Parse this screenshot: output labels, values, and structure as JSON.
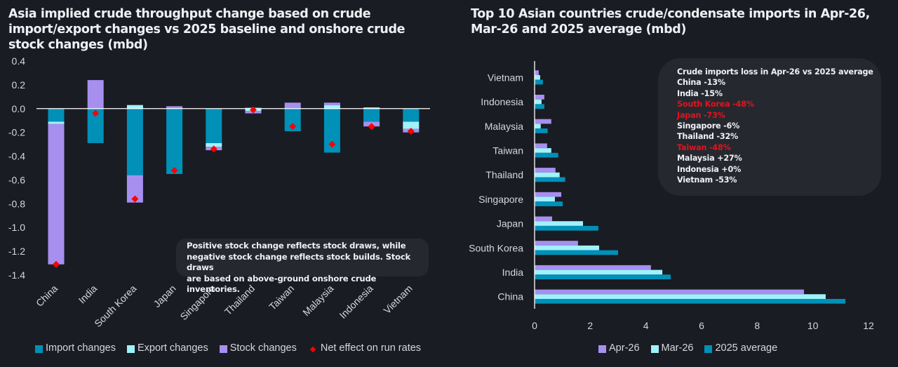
{
  "chart_data": [
    {
      "type": "bar",
      "stacked": true,
      "title": "Asia implied crude throughput change based on crude import/export changes vs 2025 baseline and onshore crude stock changes (mbd)",
      "xlabel": "",
      "ylabel": "",
      "categories": [
        "China",
        "India",
        "South Korea",
        "Japan",
        "Singapore",
        "Thailand",
        "Taiwan",
        "Malaysia",
        "Indonesia",
        "Vietnam"
      ],
      "ylim": [
        -1.4,
        0.4
      ],
      "yticks": [
        "0.4",
        "0.2",
        "0.0",
        "-0.2",
        "-0.4",
        "-0.6",
        "-0.8",
        "-1.0",
        "-1.2",
        "-1.4"
      ],
      "grid": false,
      "legend_position": "bottom",
      "series": [
        {
          "name": "Import changes",
          "color": "#0090b8",
          "values": [
            -0.11,
            -0.29,
            -0.56,
            -0.55,
            -0.29,
            0.01,
            -0.19,
            -0.37,
            -0.11,
            -0.11
          ]
        },
        {
          "name": "Export changes",
          "color": "#a0f2fa",
          "values": [
            -0.02,
            0.0,
            0.03,
            0.0,
            -0.03,
            -0.02,
            0.0,
            0.03,
            0.01,
            -0.06
          ]
        },
        {
          "name": "Stock changes",
          "color": "#a78ff0",
          "values": [
            -1.18,
            0.24,
            -0.23,
            0.02,
            -0.03,
            -0.02,
            0.05,
            0.02,
            -0.04,
            -0.03
          ]
        }
      ],
      "markers": {
        "name": "Net effect on run rates",
        "color": "#ff0000",
        "values": [
          -1.31,
          -0.04,
          -0.76,
          -0.52,
          -0.34,
          -0.01,
          -0.15,
          -0.3,
          -0.15,
          -0.19
        ]
      },
      "annotation": [
        "Positive stock change reflects stock draws, while",
        "negative stock change reflects stock builds. Stock draws",
        "are based on above-ground onshore crude inventories."
      ]
    },
    {
      "type": "bar",
      "orientation": "horizontal",
      "title": "Top 10 Asian countries crude/condensate imports in Apr-26, Mar-26 and 2025 average (mbd)",
      "xlabel": "",
      "ylabel": "",
      "categories": [
        "China",
        "India",
        "South Korea",
        "Japan",
        "Singapore",
        "Thailand",
        "Taiwan",
        "Malaysia",
        "Indonesia",
        "Vietnam"
      ],
      "xlim": [
        0,
        12
      ],
      "xticks": [
        "0",
        "2",
        "4",
        "6",
        "8",
        "10",
        "12"
      ],
      "grid": false,
      "legend_position": "bottom",
      "series": [
        {
          "name": "Apr-26",
          "color": "#a78ff0",
          "values": [
            9.68,
            4.18,
            1.56,
            0.63,
            0.96,
            0.75,
            0.45,
            0.6,
            0.35,
            0.15
          ]
        },
        {
          "name": "Mar-26",
          "color": "#a0f2fa",
          "values": [
            10.46,
            4.59,
            2.32,
            1.74,
            0.73,
            0.9,
            0.6,
            0.22,
            0.25,
            0.2
          ]
        },
        {
          "name": "2025 average",
          "color": "#0090b8",
          "values": [
            11.17,
            4.89,
            3.0,
            2.29,
            1.01,
            1.1,
            0.85,
            0.47,
            0.35,
            0.3
          ]
        }
      ],
      "annotation": {
        "heading": "Crude imports loss in Apr-26 vs 2025 average",
        "highlight_color": "#e0141c",
        "lines": [
          {
            "text": "China -13%",
            "highlight": false
          },
          {
            "text": "India -15%",
            "highlight": false
          },
          {
            "text": "South Korea -48%",
            "highlight": true
          },
          {
            "text": "Japan -73%",
            "highlight": true
          },
          {
            "text": "Singapore -6%",
            "highlight": false
          },
          {
            "text": "Thailand -32%",
            "highlight": false
          },
          {
            "text": "Taiwan -48%",
            "highlight": true
          },
          {
            "text": "Malaysia +27%",
            "highlight": false
          },
          {
            "text": "Indonesia +0%",
            "highlight": false
          },
          {
            "text": "Vietnam -53%",
            "highlight": false
          }
        ]
      }
    }
  ]
}
